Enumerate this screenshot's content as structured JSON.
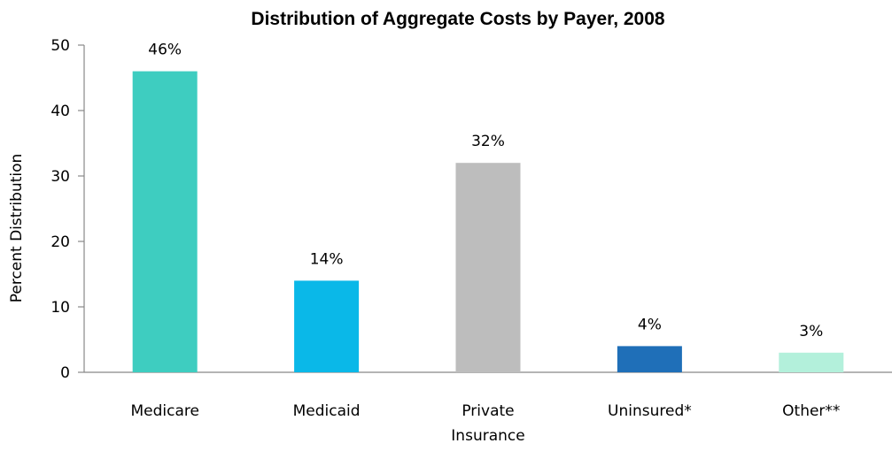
{
  "chart_data": {
    "type": "bar",
    "title": "Distribution of Aggregate Costs by Payer, 2008",
    "xlabel": "",
    "ylabel": "Percent Distribution",
    "ylim": [
      0,
      50
    ],
    "yticks": [
      "0",
      "10",
      "20",
      "30",
      "40",
      "50"
    ],
    "grid": false,
    "legend": "none",
    "categories": [
      [
        "Medicare"
      ],
      [
        "Medicaid"
      ],
      [
        "Private",
        "Insurance"
      ],
      [
        "Uninsured*"
      ],
      [
        "Other**"
      ]
    ],
    "values": [
      46,
      14,
      32,
      4,
      3
    ],
    "data_labels": [
      "46%",
      "14%",
      "32%",
      "4%",
      "3%"
    ],
    "colors": [
      "#3ecdc0",
      "#0ab8e8",
      "#bdbdbd",
      "#1f6fb8",
      "#b3f0db"
    ]
  }
}
